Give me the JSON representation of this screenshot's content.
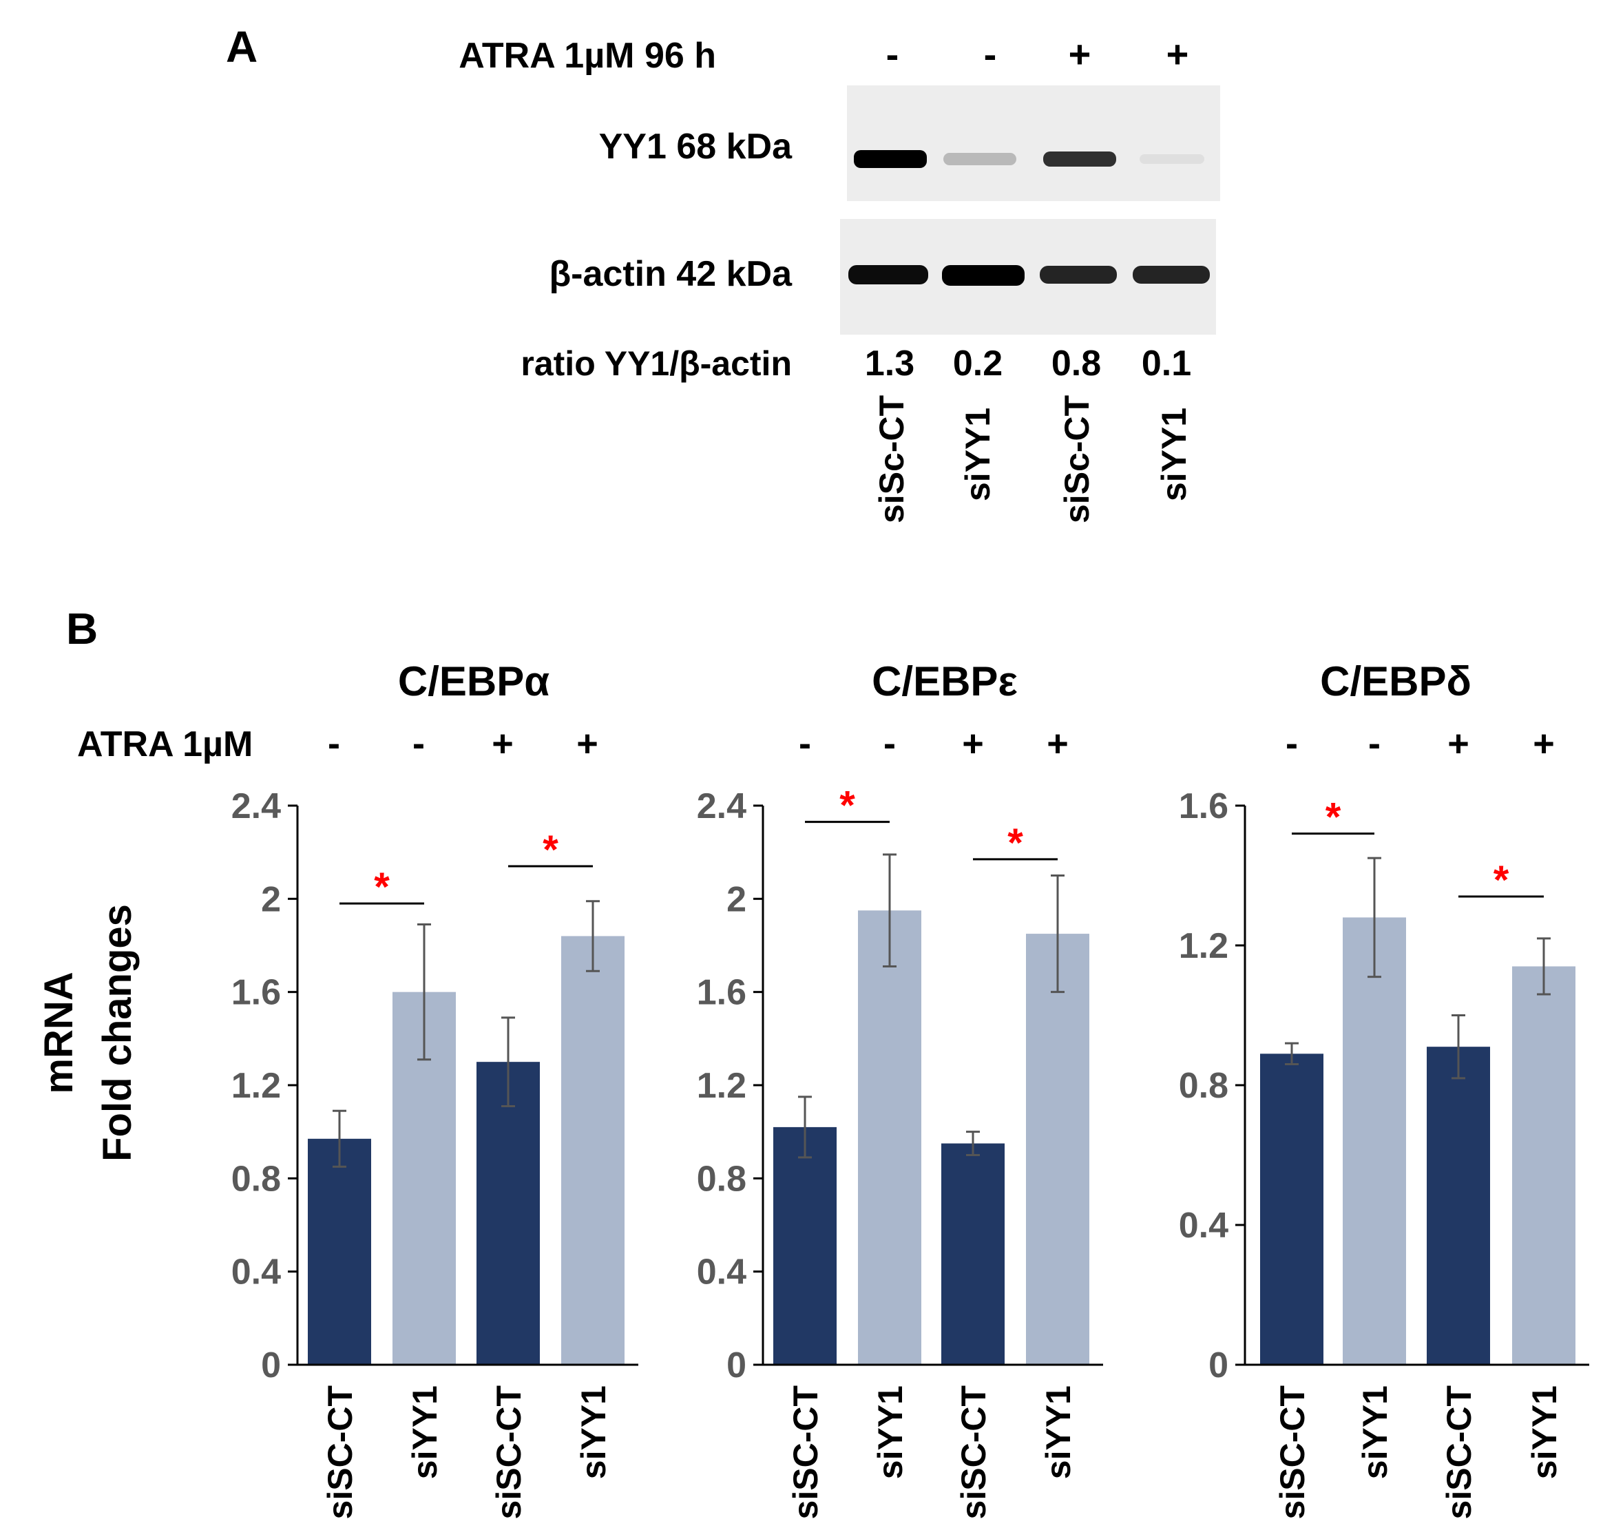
{
  "panel_a": {
    "label": "A",
    "atra_label": "ATRA 1µM 96 h",
    "atra_signs": [
      "-",
      "-",
      "+",
      "+"
    ],
    "yy1_label": "YY1 68 kDa",
    "actin_label": "β-actin 42 kDa",
    "ratio_label": "ratio YY1/β-actin",
    "ratios": [
      "1.3",
      "0.2",
      "0.8",
      "0.1"
    ],
    "lanes": [
      "siSc-CT",
      "siYY1",
      "siSc-CT",
      "siYY1"
    ],
    "yy1_intensity": [
      1.0,
      0.22,
      0.8,
      0.06
    ],
    "actin_intensity": [
      0.95,
      1.0,
      0.85,
      0.85
    ]
  },
  "panel_b": {
    "label": "B",
    "atra_label": "ATRA 1µM",
    "ylabel_line1": "mRNA",
    "ylabel_line2": "Fold changes",
    "significance_mark": "*"
  },
  "colors": {
    "siCT_bar": "#213864",
    "siYY1_bar": "#aab7cc",
    "error_bar": "#555555",
    "star": "#ff0000",
    "axis": "#000000",
    "tick_text": "#595959"
  },
  "chart_data": [
    {
      "type": "bar",
      "title": "C/EBPα",
      "atra_signs": [
        "-",
        "-",
        "+",
        "+"
      ],
      "categories": [
        "siSC-CT",
        "siYY1",
        "siSC-CT",
        "siYY1"
      ],
      "values": [
        0.97,
        1.6,
        1.3,
        1.84
      ],
      "errors": [
        0.12,
        0.29,
        0.19,
        0.15
      ],
      "ylim": [
        0,
        2.4
      ],
      "yticks": [
        "0",
        "0.4",
        "0.8",
        "1.2",
        "1.6",
        "2",
        "2.4"
      ],
      "significance": [
        {
          "pair": [
            0,
            1
          ],
          "level": 1.98
        },
        {
          "pair": [
            2,
            3
          ],
          "level": 2.14
        }
      ]
    },
    {
      "type": "bar",
      "title": "C/EBPε",
      "atra_signs": [
        "-",
        "-",
        "+",
        "+"
      ],
      "categories": [
        "siSC-CT",
        "siYY1",
        "siSC-CT",
        "siYY1"
      ],
      "values": [
        1.02,
        1.95,
        0.95,
        1.85
      ],
      "errors": [
        0.13,
        0.24,
        0.05,
        0.25
      ],
      "ylim": [
        0,
        2.4
      ],
      "yticks": [
        "0",
        "0.4",
        "0.8",
        "1.2",
        "1.6",
        "2",
        "2.4"
      ],
      "significance": [
        {
          "pair": [
            0,
            1
          ],
          "level": 2.33
        },
        {
          "pair": [
            2,
            3
          ],
          "level": 2.17
        }
      ]
    },
    {
      "type": "bar",
      "title": "C/EBPδ",
      "atra_signs": [
        "-",
        "-",
        "+",
        "+"
      ],
      "categories": [
        "siSC-CT",
        "siYY1",
        "siSC-CT",
        "siYY1"
      ],
      "values": [
        0.89,
        1.28,
        0.91,
        1.14
      ],
      "errors": [
        0.03,
        0.17,
        0.09,
        0.08
      ],
      "ylim": [
        0,
        1.6
      ],
      "yticks": [
        "0",
        "0.4",
        "0.8",
        "1.2",
        "1.6"
      ],
      "significance": [
        {
          "pair": [
            0,
            1
          ],
          "level": 1.52
        },
        {
          "pair": [
            2,
            3
          ],
          "level": 1.34
        }
      ]
    }
  ]
}
